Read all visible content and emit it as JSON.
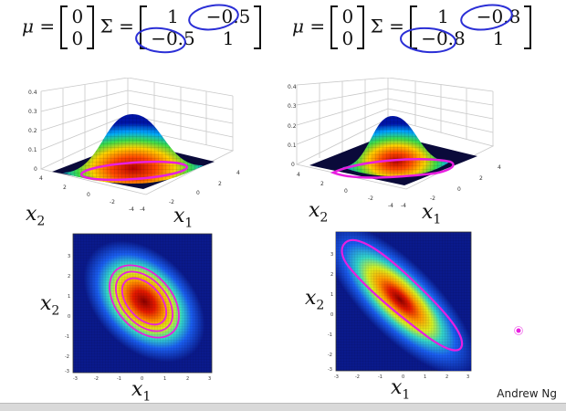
{
  "left_panel": {
    "mu_symbol": "μ",
    "equals": "=",
    "sigma_symbol": "Σ",
    "mu_vector": [
      "0",
      "0"
    ],
    "sigma_matrix": [
      [
        "1",
        "−0.5"
      ],
      [
        "−0.5",
        "1"
      ]
    ],
    "surface_ticks": {
      "z": [
        "0.4",
        "0.3",
        "0.2",
        "0.1",
        "0"
      ],
      "x": [
        "4",
        "2",
        "0",
        "-2",
        "-4"
      ],
      "y": [
        "-4",
        "-2",
        "0",
        "2",
        "4"
      ]
    },
    "heatmap_ticks": {
      "left": [
        "3",
        "2",
        "1",
        "0",
        "-1",
        "-2",
        "-3"
      ],
      "bottom": [
        "-3",
        "-2",
        "-1",
        "0",
        "1",
        "2",
        "3"
      ]
    },
    "surface_x2": "x",
    "surface_x2_sub": "2",
    "surface_x1": "x",
    "surface_x1_sub": "1",
    "heat_x2": "x",
    "heat_x2_sub": "2",
    "heat_x1": "x",
    "heat_x1_sub": "1"
  },
  "right_panel": {
    "mu_symbol": "μ",
    "equals": "=",
    "sigma_symbol": "Σ",
    "mu_vector": [
      "0",
      "0"
    ],
    "sigma_matrix": [
      [
        "1",
        "−0.8"
      ],
      [
        "−0.8",
        "1"
      ]
    ],
    "surface_ticks": {
      "z": [
        "0.4",
        "0.3",
        "0.2",
        "0.1",
        "0"
      ],
      "x": [
        "4",
        "2",
        "0",
        "-2",
        "-4"
      ],
      "y": [
        "-4",
        "-2",
        "0",
        "2",
        "4"
      ]
    },
    "heatmap_ticks": {
      "left": [
        "3",
        "2",
        "1",
        "0",
        "-1",
        "-2",
        "-3"
      ],
      "bottom": [
        "-3",
        "-2",
        "-1",
        "0",
        "1",
        "2",
        "3"
      ]
    },
    "surface_x2": "x",
    "surface_x2_sub": "2",
    "surface_x1": "x",
    "surface_x1_sub": "1",
    "heat_x2": "x",
    "heat_x2_sub": "2",
    "heat_x1": "x",
    "heat_x1_sub": "1"
  },
  "credit": "Andrew Ng",
  "colors": {
    "annotation_blue": "#2b2fd6",
    "contour_magenta": "#e81fe0",
    "heatmap_bg": "#0a1a8c"
  }
}
